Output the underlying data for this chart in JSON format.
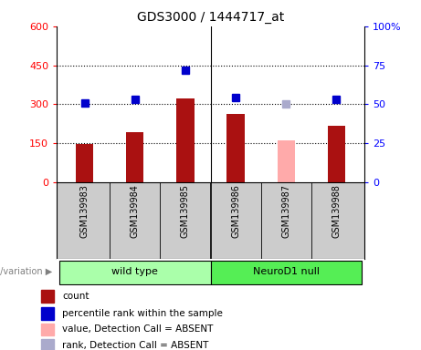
{
  "title": "GDS3000 / 1444717_at",
  "samples": [
    "GSM139983",
    "GSM139984",
    "GSM139985",
    "GSM139986",
    "GSM139987",
    "GSM139988"
  ],
  "count_values": [
    145,
    192,
    322,
    262,
    160,
    215
  ],
  "percentile_values": [
    51,
    53,
    72,
    54,
    50,
    53
  ],
  "absent_flags": [
    false,
    false,
    false,
    false,
    true,
    false
  ],
  "bar_color_normal": "#aa1111",
  "bar_color_absent": "#ffaaaa",
  "marker_color_normal": "#0000cc",
  "marker_color_absent": "#aaaacc",
  "left_yticks": [
    0,
    150,
    300,
    450,
    600
  ],
  "left_ytick_labels": [
    "0",
    "150",
    "300",
    "450",
    "600"
  ],
  "right_yticks": [
    0,
    25,
    50,
    75,
    100
  ],
  "right_ytick_labels": [
    "0",
    "25",
    "50",
    "75",
    "100%"
  ],
  "group_wt_color": "#aaffaa",
  "group_nd_color": "#55ee55",
  "legend_items": [
    {
      "label": "count",
      "color": "#aa1111"
    },
    {
      "label": "percentile rank within the sample",
      "color": "#0000cc"
    },
    {
      "label": "value, Detection Call = ABSENT",
      "color": "#ffaaaa"
    },
    {
      "label": "rank, Detection Call = ABSENT",
      "color": "#aaaacc"
    }
  ],
  "dotted_gridlines": [
    150,
    300,
    450
  ],
  "label_area_color": "#cccccc",
  "bar_width": 0.35
}
